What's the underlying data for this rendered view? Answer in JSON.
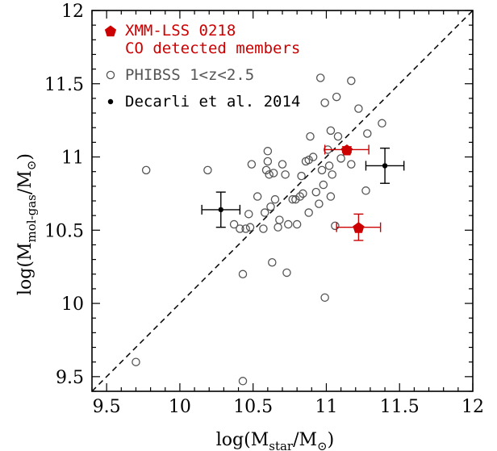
{
  "chart_data": {
    "type": "scatter",
    "xlabel": "log(M_star/M⊙)",
    "ylabel": "log(M_mol-gas/M⊙)",
    "xlim": [
      9.4,
      12.0
    ],
    "ylim": [
      9.4,
      12.0
    ],
    "x_ticks": [
      9.5,
      10,
      10.5,
      11,
      11.5,
      12
    ],
    "y_ticks": [
      9.5,
      10,
      10.5,
      11,
      11.5,
      12
    ],
    "x_tick_labels": [
      "9.5",
      "10",
      "10.5",
      "11",
      "11.5",
      "12"
    ],
    "y_tick_labels": [
      "9.5",
      "10",
      "10.5",
      "11",
      "11.5",
      "12"
    ],
    "one_to_one_line": true,
    "legend_position": "top-left",
    "series": [
      {
        "name": "XMM-LSS 0218 CO detected members",
        "marker": "filled-pentagon",
        "color": "#cc0000",
        "points": [
          {
            "x": 11.14,
            "y": 11.05,
            "xerr": 0.15,
            "yerr": 0.02
          },
          {
            "x": 11.22,
            "y": 10.52,
            "xerr": 0.15,
            "yerr": 0.09
          }
        ]
      },
      {
        "name": "PHIBSS 1<z<2.5",
        "marker": "open-circle",
        "color": "#555555",
        "points": [
          {
            "x": 9.7,
            "y": 9.6
          },
          {
            "x": 9.77,
            "y": 10.91
          },
          {
            "x": 10.19,
            "y": 10.91
          },
          {
            "x": 10.37,
            "y": 10.54
          },
          {
            "x": 10.41,
            "y": 10.51
          },
          {
            "x": 10.43,
            "y": 10.2
          },
          {
            "x": 10.43,
            "y": 9.47
          },
          {
            "x": 10.45,
            "y": 10.51
          },
          {
            "x": 10.47,
            "y": 10.61
          },
          {
            "x": 10.48,
            "y": 10.52
          },
          {
            "x": 10.49,
            "y": 10.95
          },
          {
            "x": 10.53,
            "y": 10.73
          },
          {
            "x": 10.57,
            "y": 10.51
          },
          {
            "x": 10.58,
            "y": 10.62
          },
          {
            "x": 10.59,
            "y": 10.91
          },
          {
            "x": 10.6,
            "y": 11.04
          },
          {
            "x": 10.6,
            "y": 10.97
          },
          {
            "x": 10.61,
            "y": 10.88
          },
          {
            "x": 10.62,
            "y": 10.66
          },
          {
            "x": 10.63,
            "y": 10.28
          },
          {
            "x": 10.64,
            "y": 10.89
          },
          {
            "x": 10.65,
            "y": 10.71
          },
          {
            "x": 10.67,
            "y": 10.52
          },
          {
            "x": 10.68,
            "y": 10.57
          },
          {
            "x": 10.7,
            "y": 10.95
          },
          {
            "x": 10.72,
            "y": 10.88
          },
          {
            "x": 10.73,
            "y": 10.21
          },
          {
            "x": 10.74,
            "y": 10.54
          },
          {
            "x": 10.77,
            "y": 10.71
          },
          {
            "x": 10.79,
            "y": 10.71
          },
          {
            "x": 10.8,
            "y": 10.54
          },
          {
            "x": 10.82,
            "y": 10.73
          },
          {
            "x": 10.83,
            "y": 10.87
          },
          {
            "x": 10.84,
            "y": 10.75
          },
          {
            "x": 10.86,
            "y": 10.97
          },
          {
            "x": 10.88,
            "y": 10.98
          },
          {
            "x": 10.88,
            "y": 10.62
          },
          {
            "x": 10.89,
            "y": 11.14
          },
          {
            "x": 10.91,
            "y": 11.0
          },
          {
            "x": 10.93,
            "y": 10.76
          },
          {
            "x": 10.95,
            "y": 10.68
          },
          {
            "x": 10.96,
            "y": 11.54
          },
          {
            "x": 10.97,
            "y": 10.91
          },
          {
            "x": 10.98,
            "y": 10.81
          },
          {
            "x": 10.99,
            "y": 10.04
          },
          {
            "x": 10.99,
            "y": 11.37
          },
          {
            "x": 11.01,
            "y": 11.05
          },
          {
            "x": 11.02,
            "y": 10.94
          },
          {
            "x": 11.03,
            "y": 11.18
          },
          {
            "x": 11.03,
            "y": 10.73
          },
          {
            "x": 11.04,
            "y": 10.88
          },
          {
            "x": 11.06,
            "y": 10.53
          },
          {
            "x": 11.07,
            "y": 11.41
          },
          {
            "x": 11.08,
            "y": 11.14
          },
          {
            "x": 11.1,
            "y": 10.99
          },
          {
            "x": 11.17,
            "y": 11.52
          },
          {
            "x": 11.17,
            "y": 10.95
          },
          {
            "x": 11.22,
            "y": 11.33
          },
          {
            "x": 11.27,
            "y": 10.77
          },
          {
            "x": 11.28,
            "y": 11.16
          },
          {
            "x": 11.38,
            "y": 11.23
          }
        ]
      },
      {
        "name": "Decarli et al. 2014",
        "marker": "filled-circle",
        "color": "#000000",
        "points": [
          {
            "x": 10.28,
            "y": 10.64,
            "xerr": 0.13,
            "yerr": 0.12
          },
          {
            "x": 11.4,
            "y": 10.94,
            "xerr": 0.13,
            "yerr": 0.12
          }
        ]
      }
    ]
  },
  "legend": {
    "items": [
      {
        "label_lines": [
          "XMM-LSS 0218",
          "CO detected members"
        ],
        "color": "#cc0000",
        "marker": "filled-pentagon"
      },
      {
        "label_lines": [
          "PHIBSS 1<z<2.5"
        ],
        "color": "#555555",
        "marker": "open-circle"
      },
      {
        "label_lines": [
          "Decarli et al. 2014"
        ],
        "color": "#000000",
        "marker": "filled-circle"
      }
    ]
  },
  "axes": {
    "x_title": {
      "main": "log(M",
      "sub": "star",
      "tail": "/M",
      "tail_sub": "⊙",
      "close": ")"
    },
    "y_title": {
      "main": "log(M",
      "sub": "mol-gas",
      "tail": "/M",
      "tail_sub": "⊙",
      "close": ")"
    }
  }
}
